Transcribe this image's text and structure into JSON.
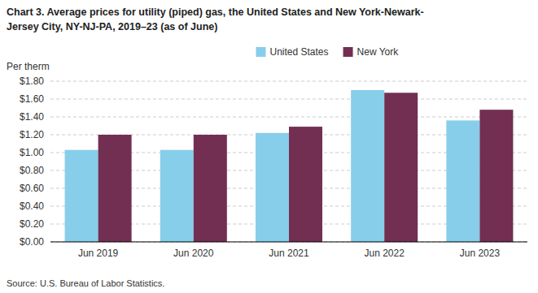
{
  "chart_data": {
    "type": "bar",
    "title": "Chart 3. Average prices for utility (piped) gas, the United States and New York-Newark-",
    "subtitle": "Jersey City, NY-NJ-PA, 2019–23 (as of June)",
    "ylabel": "Per therm",
    "source": "Source: U.S. Bureau of Labor Statistics.",
    "categories": [
      "Jun 2019",
      "Jun 2020",
      "Jun 2021",
      "Jun 2022",
      "Jun 2023"
    ],
    "series": [
      {
        "name": "United States",
        "color": "#87CEEB",
        "values": [
          1.03,
          1.03,
          1.22,
          1.7,
          1.36
        ]
      },
      {
        "name": "New York",
        "color": "#722F52",
        "values": [
          1.2,
          1.2,
          1.29,
          1.67,
          1.48
        ]
      }
    ],
    "ylim": [
      0.0,
      1.8
    ],
    "yticks": [
      {
        "value": 0.0,
        "label": "$0.00"
      },
      {
        "value": 0.2,
        "label": "$0.20"
      },
      {
        "value": 0.4,
        "label": "$0.40"
      },
      {
        "value": 0.6,
        "label": "$0.60"
      },
      {
        "value": 0.8,
        "label": "$0.80"
      },
      {
        "value": 1.0,
        "label": "$1.00"
      },
      {
        "value": 1.2,
        "label": "$1.20"
      },
      {
        "value": 1.4,
        "label": "$1.40"
      },
      {
        "value": 1.6,
        "label": "$1.60"
      },
      {
        "value": 1.8,
        "label": "$1.80"
      }
    ],
    "grid": true,
    "legend": "top"
  }
}
